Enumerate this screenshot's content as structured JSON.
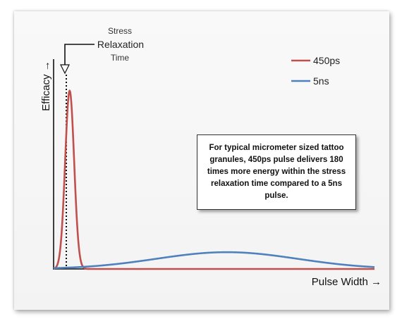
{
  "chart_data": {
    "type": "line",
    "xlabel": "Pulse Width →",
    "ylabel": "Efficacy →",
    "x_range": [
      0,
      100
    ],
    "y_range": [
      0,
      1
    ],
    "grid": false,
    "legend_position": "top-right",
    "series": [
      {
        "name": "450ps",
        "color": "#c0504d",
        "peak_x": 5,
        "peak_y": 0.85,
        "width": 1.4
      },
      {
        "name": "5ns",
        "color": "#4f81bd",
        "peak_x": 54,
        "peak_y": 0.08,
        "width": 22
      }
    ],
    "annotations": {
      "stress_relaxation": {
        "text": [
          "Stress",
          "Relaxation",
          "Time"
        ],
        "x": 4
      },
      "callout": "For typical micrometer sized tattoo granules, 450ps pulse delivers 180 times more energy within the stress relaxation time compared to a 5ns pulse."
    }
  }
}
